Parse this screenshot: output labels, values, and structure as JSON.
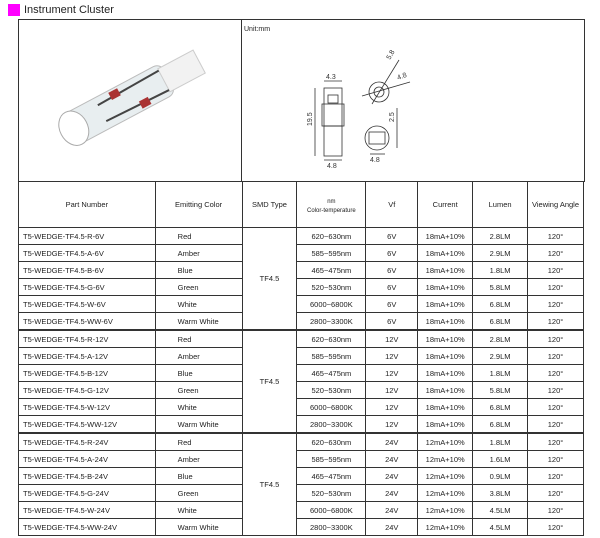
{
  "title": "Instrument Cluster",
  "drawing": {
    "unit": "Unit:mm",
    "dims": [
      "4.3",
      "19.5",
      "4.8",
      "5.8",
      "4.8",
      "2.5",
      "4.8"
    ]
  },
  "table": {
    "headers": [
      "Part Number",
      "Emitting Color",
      "SMD Type",
      "nm",
      "Color-temperature",
      "Vf",
      "Current",
      "Lumen",
      "Viewing Angle"
    ],
    "groups": [
      {
        "smd": "TF4.5",
        "rows": [
          [
            "T5-WEDGE-TF4.5-R-6V",
            "Red",
            "620~630nm",
            "6V",
            "18mA+10%",
            "2.8LM",
            "120°"
          ],
          [
            "T5-WEDGE-TF4.5-A-6V",
            "Amber",
            "585~595nm",
            "6V",
            "18mA+10%",
            "2.9LM",
            "120°"
          ],
          [
            "T5-WEDGE-TF4.5-B-6V",
            "Blue",
            "465~475nm",
            "6V",
            "18mA+10%",
            "1.8LM",
            "120°"
          ],
          [
            "T5-WEDGE-TF4.5-G-6V",
            "Green",
            "520~530nm",
            "6V",
            "18mA+10%",
            "5.8LM",
            "120°"
          ],
          [
            "T5-WEDGE-TF4.5-W-6V",
            "White",
            "6000~6800K",
            "6V",
            "18mA+10%",
            "6.8LM",
            "120°"
          ],
          [
            "T5-WEDGE-TF4.5-WW-6V",
            "Warm White",
            "2800~3300K",
            "6V",
            "18mA+10%",
            "6.8LM",
            "120°"
          ]
        ]
      },
      {
        "smd": "TF4.5",
        "rows": [
          [
            "T5-WEDGE-TF4.5-R-12V",
            "Red",
            "620~630nm",
            "12V",
            "18mA+10%",
            "2.8LM",
            "120°"
          ],
          [
            "T5-WEDGE-TF4.5-A-12V",
            "Amber",
            "585~595nm",
            "12V",
            "18mA+10%",
            "2.9LM",
            "120°"
          ],
          [
            "T5-WEDGE-TF4.5-B-12V",
            "Blue",
            "465~475nm",
            "12V",
            "18mA+10%",
            "1.8LM",
            "120°"
          ],
          [
            "T5-WEDGE-TF4.5-G-12V",
            "Green",
            "520~530nm",
            "12V",
            "18mA+10%",
            "5.8LM",
            "120°"
          ],
          [
            "T5-WEDGE-TF4.5-W-12V",
            "White",
            "6000~6800K",
            "12V",
            "18mA+10%",
            "6.8LM",
            "120°"
          ],
          [
            "T5-WEDGE-TF4.5-WW-12V",
            "Warm White",
            "2800~3300K",
            "12V",
            "18mA+10%",
            "6.8LM",
            "120°"
          ]
        ]
      },
      {
        "smd": "TF4.5",
        "rows": [
          [
            "T5-WEDGE-TF4.5-R-24V",
            "Red",
            "620~630nm",
            "24V",
            "12mA+10%",
            "1.8LM",
            "120°"
          ],
          [
            "T5-WEDGE-TF4.5-A-24V",
            "Amber",
            "585~595nm",
            "24V",
            "12mA+10%",
            "1.6LM",
            "120°"
          ],
          [
            "T5-WEDGE-TF4.5-B-24V",
            "Blue",
            "465~475nm",
            "24V",
            "12mA+10%",
            "0.9LM",
            "120°"
          ],
          [
            "T5-WEDGE-TF4.5-G-24V",
            "Green",
            "520~530nm",
            "24V",
            "12mA+10%",
            "3.8LM",
            "120°"
          ],
          [
            "T5-WEDGE-TF4.5-W-24V",
            "White",
            "6000~6800K",
            "24V",
            "12mA+10%",
            "4.5LM",
            "120°"
          ],
          [
            "T5-WEDGE-TF4.5-WW-24V",
            "Warm White",
            "2800~3300K",
            "24V",
            "12mA+10%",
            "4.5LM",
            "120°"
          ]
        ]
      }
    ]
  }
}
